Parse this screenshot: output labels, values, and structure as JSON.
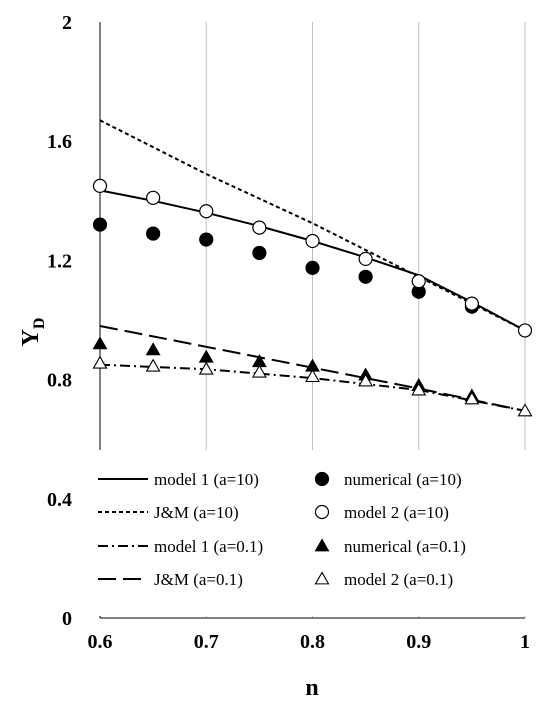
{
  "chart_data": {
    "type": "line",
    "xlabel": "n",
    "ylabel": "Y",
    "ylabel_sub": "D",
    "xlim": [
      0.6,
      1.0
    ],
    "ylim": [
      0,
      2
    ],
    "x_ticks": [
      "0.6",
      "0.7",
      "0.8",
      "0.9",
      "1"
    ],
    "y_ticks": [
      "0",
      "0.4",
      "0.8",
      "1.2",
      "1.6",
      "2"
    ],
    "grid": "vertical",
    "legend_position": "bottom",
    "series": [
      {
        "name": "model 1 (a=10)",
        "style": "solid",
        "marker": "none",
        "x": [
          0.6,
          0.65,
          0.7,
          0.75,
          0.8,
          0.85,
          0.9,
          0.95,
          1.0
        ],
        "y": [
          1.435,
          1.4,
          1.36,
          1.315,
          1.265,
          1.21,
          1.15,
          1.06,
          0.965
        ]
      },
      {
        "name": "J&M (a=10)",
        "style": "dotted",
        "marker": "none",
        "x": [
          0.6,
          0.7,
          0.8,
          0.9,
          1.0
        ],
        "y": [
          1.67,
          1.49,
          1.325,
          1.145,
          0.965
        ]
      },
      {
        "name": "model 1 (a=0.1)",
        "style": "dashdot",
        "marker": "none",
        "x": [
          0.6,
          0.7,
          0.8,
          0.9,
          1.0
        ],
        "y": [
          0.85,
          0.835,
          0.805,
          0.765,
          0.695
        ]
      },
      {
        "name": "J&M (a=0.1)",
        "style": "longdash",
        "marker": "none",
        "x": [
          0.6,
          0.7,
          0.8,
          0.9,
          1.0
        ],
        "y": [
          0.98,
          0.91,
          0.84,
          0.77,
          0.695
        ]
      },
      {
        "name": "numerical (a=10)",
        "style": "none",
        "marker": "filled-circle",
        "x": [
          0.6,
          0.65,
          0.7,
          0.75,
          0.8,
          0.85,
          0.9,
          0.95
        ],
        "y": [
          1.32,
          1.29,
          1.27,
          1.225,
          1.175,
          1.145,
          1.095,
          1.045
        ]
      },
      {
        "name": "model 2 (a=10)",
        "style": "none",
        "marker": "open-circle",
        "x": [
          0.6,
          0.65,
          0.7,
          0.75,
          0.8,
          0.85,
          0.9,
          0.95,
          1.0
        ],
        "y": [
          1.45,
          1.41,
          1.365,
          1.31,
          1.265,
          1.205,
          1.13,
          1.055,
          0.965
        ]
      },
      {
        "name": "numerical (a=0.1)",
        "style": "none",
        "marker": "filled-triangle",
        "x": [
          0.6,
          0.65,
          0.7,
          0.75,
          0.8,
          0.85,
          0.9,
          0.95
        ],
        "y": [
          0.92,
          0.9,
          0.875,
          0.86,
          0.845,
          0.815,
          0.78,
          0.745
        ]
      },
      {
        "name": "model 2 (a=0.1)",
        "style": "none",
        "marker": "open-triangle",
        "x": [
          0.6,
          0.65,
          0.7,
          0.75,
          0.8,
          0.85,
          0.9,
          0.95,
          1.0
        ],
        "y": [
          0.855,
          0.845,
          0.835,
          0.825,
          0.81,
          0.795,
          0.765,
          0.735,
          0.695
        ]
      }
    ]
  }
}
